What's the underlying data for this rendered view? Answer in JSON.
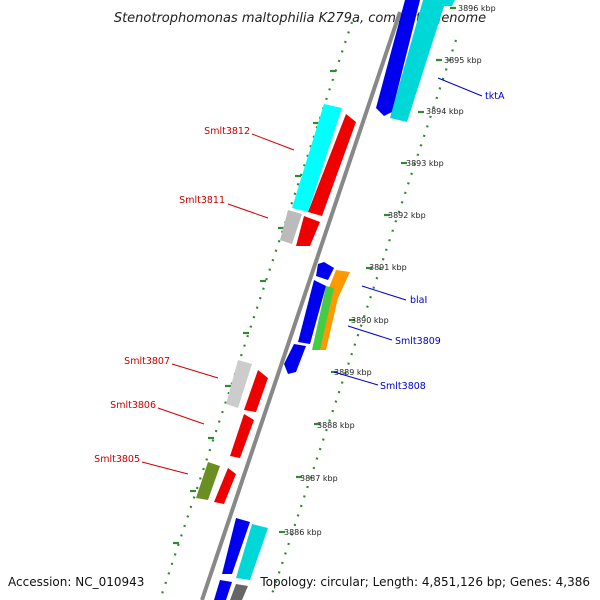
{
  "title": "Stenotrophomonas maltophilia K279a, complete genome",
  "accession": "Accession: NC_010943",
  "summary": "Topology: circular; Length: 4,851,126 bp; Genes: 4,386",
  "colors": {
    "backbone": "#808080",
    "dotted_track": "#2e8b2e",
    "label_forward": "#0000cc",
    "label_reverse": "#cc0000",
    "blue": "#0000ee",
    "cyan": "#00d8d8",
    "red": "#ee0000",
    "gray": "#bbbbbb",
    "orange": "#ff9900",
    "green": "#44cc44",
    "olive": "#6b8e23",
    "darkgray": "#666666"
  },
  "ticks": [
    {
      "label": "3896 kbp"
    },
    {
      "label": "3895 kbp"
    },
    {
      "label": "3894 kbp"
    },
    {
      "label": "3893 kbp"
    },
    {
      "label": "3892 kbp"
    },
    {
      "label": "3891 kbp"
    },
    {
      "label": "3890 kbp"
    },
    {
      "label": "3889 kbp"
    },
    {
      "label": "3888 kbp"
    },
    {
      "label": "3887 kbp"
    },
    {
      "label": "3886 kbp"
    }
  ],
  "gene_labels": [
    {
      "text": "tktA",
      "strand": "forward"
    },
    {
      "text": "blaI",
      "strand": "forward"
    },
    {
      "text": "Smlt3809",
      "strand": "forward"
    },
    {
      "text": "Smlt3808",
      "strand": "forward"
    },
    {
      "text": "Smlt3812",
      "strand": "reverse"
    },
    {
      "text": "Smlt3811",
      "strand": "reverse"
    },
    {
      "text": "Smlt3807",
      "strand": "reverse"
    },
    {
      "text": "Smlt3806",
      "strand": "reverse"
    },
    {
      "text": "Smlt3805",
      "strand": "reverse"
    }
  ]
}
